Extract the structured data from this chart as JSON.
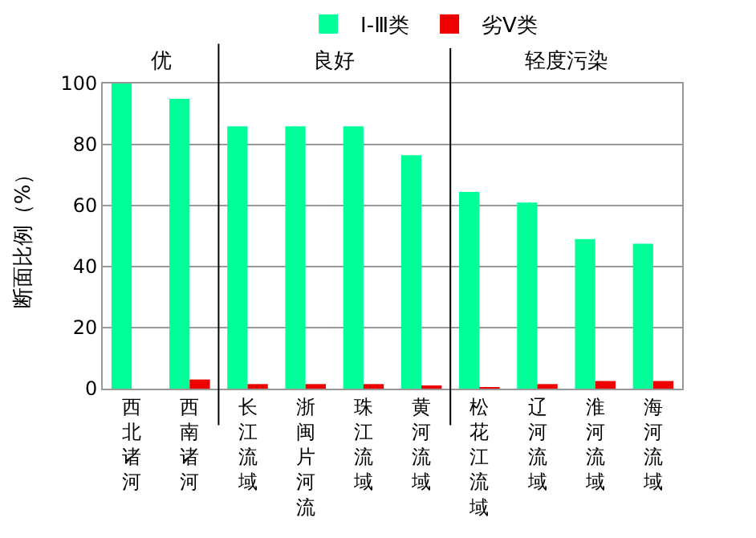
{
  "chart_data": {
    "type": "bar",
    "ylabel": "断面比例（%）",
    "categories": [
      "西北诸河",
      "西南诸河",
      "长江流域",
      "浙闽片河流",
      "珠江流域",
      "黄河流域",
      "松花江流域",
      "辽河流域",
      "淮河流域",
      "海河流域"
    ],
    "series": [
      {
        "name": "Ⅰ-Ⅲ类",
        "color": "#00ff99",
        "values": [
          100,
          95,
          86,
          86,
          86,
          76.5,
          64.5,
          61,
          49,
          47.5
        ]
      },
      {
        "name": "劣Ⅴ类",
        "color": "#ee0000",
        "values": [
          0,
          3,
          1.5,
          1.5,
          1.5,
          1,
          0.5,
          1.5,
          2.5,
          2.5
        ]
      }
    ],
    "ylim": [
      0,
      100
    ],
    "yticks": [
      0,
      20,
      40,
      60,
      80,
      100
    ],
    "grid": "y",
    "legend": "top",
    "annotations": [
      "优",
      "良好",
      "轻度污染"
    ]
  }
}
